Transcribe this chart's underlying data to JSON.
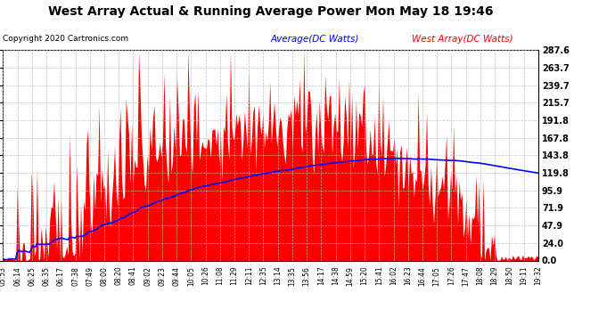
{
  "title": "West Array Actual & Running Average Power Mon May 18 19:46",
  "copyright": "Copyright 2020 Cartronics.com",
  "legend_avg": "Average(DC Watts)",
  "legend_west": "West Array(DC Watts)",
  "ylabel_right_ticks": [
    0.0,
    24.0,
    47.9,
    71.9,
    95.9,
    119.8,
    143.8,
    167.8,
    191.8,
    215.7,
    239.7,
    263.7,
    287.6
  ],
  "ymax": 287.6,
  "ymin": 0.0,
  "fill_color": "#ff0000",
  "avg_line_color": "#0000ff",
  "background_color": "#ffffff",
  "grid_color": "#bbbbbb",
  "title_color": "#000000",
  "copyright_color": "#000000",
  "legend_avg_color": "#0000ff",
  "legend_west_color": "#ff0000",
  "x_labels": [
    "05:53",
    "06:14",
    "06:25",
    "06:35",
    "06:17",
    "07:38",
    "07:49",
    "08:00",
    "08:20",
    "08:41",
    "09:02",
    "09:23",
    "09:44",
    "10:05",
    "10:26",
    "11:08",
    "11:29",
    "12:11",
    "12:35",
    "13:14",
    "13:35",
    "13:56",
    "14:17",
    "14:38",
    "14:59",
    "15:20",
    "15:41",
    "16:02",
    "16:23",
    "16:44",
    "17:05",
    "17:26",
    "17:47",
    "18:08",
    "18:29",
    "18:50",
    "19:11",
    "19:32"
  ],
  "num_points": 380
}
